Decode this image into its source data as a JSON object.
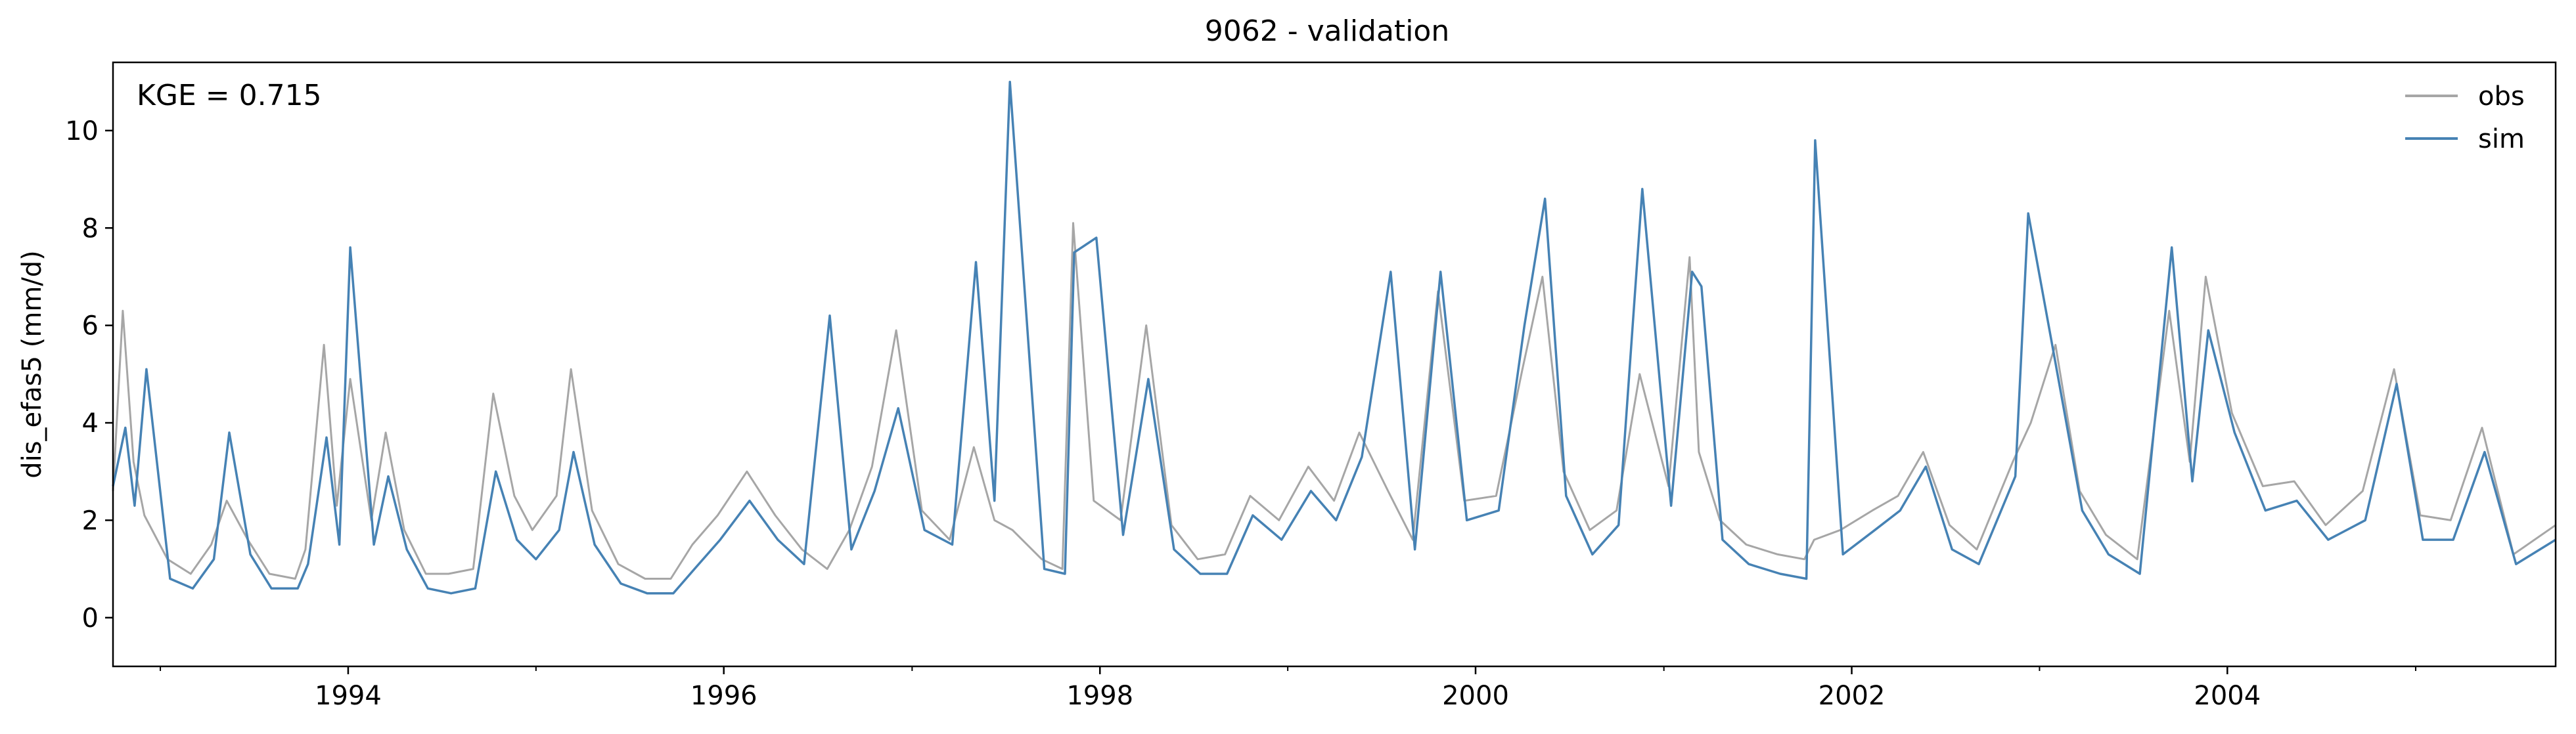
{
  "chart_data": {
    "type": "line",
    "title": "9062 - validation",
    "xlabel": "",
    "ylabel": "dis_efas5 (mm/d)",
    "annotation": "KGE = 0.715",
    "x_range": [
      "1992-10-01",
      "2005-09-30"
    ],
    "ylim": [
      -1.0,
      11.4
    ],
    "y_ticks": [
      0,
      2,
      4,
      6,
      8,
      10
    ],
    "x_tick_labels": [
      "1994",
      "1996",
      "1998",
      "2000",
      "2002",
      "2004"
    ],
    "x_major_ticks": [
      "1994-01-01",
      "1996-01-01",
      "1998-01-01",
      "2000-01-01",
      "2002-01-01",
      "2004-01-01"
    ],
    "x_minor_ticks": [
      "1993-01-01",
      "1995-01-01",
      "1997-01-01",
      "1999-01-01",
      "2001-01-01",
      "2003-01-01",
      "2005-01-01"
    ],
    "grid": false,
    "legend_position": "top-right",
    "series": [
      {
        "name": "obs",
        "color": "#a6a6a6",
        "x": [
          "1992-10-01",
          "1992-10-20",
          "1992-11-10",
          "1992-12-01",
          "1993-01-15",
          "1993-03-01",
          "1993-04-10",
          "1993-05-10",
          "1993-06-20",
          "1993-08-01",
          "1993-09-20",
          "1993-10-10",
          "1993-11-15",
          "1993-12-10",
          "1994-01-05",
          "1994-02-15",
          "1994-03-15",
          "1994-04-20",
          "1994-06-01",
          "1994-07-15",
          "1994-09-01",
          "1994-10-10",
          "1994-11-20",
          "1994-12-25",
          "1995-02-10",
          "1995-03-10",
          "1995-04-20",
          "1995-06-10",
          "1995-08-01",
          "1995-09-20",
          "1995-11-01",
          "1995-12-20",
          "1996-02-15",
          "1996-04-10",
          "1996-06-01",
          "1996-07-20",
          "1996-09-01",
          "1996-10-15",
          "1996-12-01",
          "1997-01-20",
          "1997-03-15",
          "1997-05-01",
          "1997-06-10",
          "1997-07-15",
          "1997-09-10",
          "1997-10-20",
          "1997-11-10",
          "1997-12-20",
          "1998-02-10",
          "1998-04-01",
          "1998-05-20",
          "1998-07-10",
          "1998-09-01",
          "1998-10-20",
          "1998-12-15",
          "1999-02-10",
          "1999-04-01",
          "1999-05-20",
          "1999-07-15",
          "1999-09-01",
          "1999-10-20",
          "1999-12-10",
          "2000-02-10",
          "2000-04-01",
          "2000-05-10",
          "2000-06-20",
          "2000-08-10",
          "2000-10-01",
          "2000-11-15",
          "2001-01-10",
          "2001-02-20",
          "2001-03-10",
          "2001-04-20",
          "2001-06-10",
          "2001-08-10",
          "2001-10-01",
          "2001-10-20",
          "2001-12-10",
          "2002-02-10",
          "2002-04-01",
          "2002-05-20",
          "2002-07-10",
          "2002-09-01",
          "2002-11-10",
          "2002-12-15",
          "2003-02-01",
          "2003-03-20",
          "2003-05-10",
          "2003-07-10",
          "2003-09-10",
          "2003-10-20",
          "2003-11-20",
          "2004-01-10",
          "2004-03-10",
          "2004-05-10",
          "2004-07-10",
          "2004-09-20",
          "2004-11-20",
          "2005-01-10",
          "2005-03-10",
          "2005-05-10",
          "2005-07-10",
          "2005-09-30"
        ],
        "values": [
          2.6,
          6.3,
          3.2,
          2.1,
          1.2,
          0.9,
          1.5,
          2.4,
          1.6,
          0.9,
          0.8,
          1.4,
          5.6,
          2.3,
          4.9,
          2.0,
          3.8,
          1.8,
          0.9,
          0.9,
          1.0,
          4.6,
          2.5,
          1.8,
          2.5,
          5.1,
          2.2,
          1.1,
          0.8,
          0.8,
          1.5,
          2.1,
          3.0,
          2.1,
          1.4,
          1.0,
          1.8,
          3.1,
          5.9,
          2.2,
          1.6,
          3.5,
          2.0,
          1.8,
          1.2,
          1.0,
          8.1,
          2.4,
          2.0,
          6.0,
          1.9,
          1.2,
          1.3,
          2.5,
          2.0,
          3.1,
          2.4,
          3.8,
          2.6,
          1.6,
          6.7,
          2.4,
          2.5,
          5.1,
          7.0,
          3.0,
          1.8,
          2.2,
          5.0,
          2.7,
          7.4,
          3.4,
          2.0,
          1.5,
          1.3,
          1.2,
          1.6,
          1.8,
          2.2,
          2.5,
          3.4,
          1.9,
          1.4,
          3.2,
          4.0,
          5.6,
          2.6,
          1.7,
          1.2,
          6.3,
          3.2,
          7.0,
          4.2,
          2.7,
          2.8,
          1.9,
          2.6,
          5.1,
          2.1,
          2.0,
          3.9,
          1.3,
          1.9
        ]
      },
      {
        "name": "sim",
        "color": "#4682b4",
        "x": [
          "1992-10-01",
          "1992-10-25",
          "1992-11-12",
          "1992-12-05",
          "1993-01-20",
          "1993-03-05",
          "1993-04-15",
          "1993-05-15",
          "1993-06-25",
          "1993-08-05",
          "1993-09-25",
          "1993-10-15",
          "1993-11-20",
          "1993-12-15",
          "1994-01-05",
          "1994-02-20",
          "1994-03-20",
          "1994-04-25",
          "1994-06-05",
          "1994-07-20",
          "1994-09-05",
          "1994-10-15",
          "1994-11-25",
          "1995-01-01",
          "1995-02-15",
          "1995-03-15",
          "1995-04-25",
          "1995-06-15",
          "1995-08-05",
          "1995-09-25",
          "1995-11-05",
          "1995-12-25",
          "1996-02-20",
          "1996-04-15",
          "1996-06-05",
          "1996-07-25",
          "1996-09-05",
          "1996-10-20",
          "1996-12-05",
          "1997-01-25",
          "1997-03-20",
          "1997-05-05",
          "1997-06-10",
          "1997-07-10",
          "1997-09-15",
          "1997-10-25",
          "1997-11-12",
          "1997-12-25",
          "1998-02-15",
          "1998-04-05",
          "1998-05-25",
          "1998-07-15",
          "1998-09-05",
          "1998-10-25",
          "1998-12-20",
          "1999-02-15",
          "1999-04-05",
          "1999-05-25",
          "1999-07-20",
          "1999-09-05",
          "1999-10-25",
          "1999-12-15",
          "2000-02-15",
          "2000-04-05",
          "2000-05-15",
          "2000-06-25",
          "2000-08-15",
          "2000-10-05",
          "2000-11-20",
          "2001-01-15",
          "2001-02-25",
          "2001-03-15",
          "2001-04-25",
          "2001-06-15",
          "2001-08-15",
          "2001-10-05",
          "2001-10-22",
          "2001-12-15",
          "2002-02-15",
          "2002-04-05",
          "2002-05-25",
          "2002-07-15",
          "2002-09-05",
          "2002-11-15",
          "2002-12-10",
          "2003-02-05",
          "2003-03-25",
          "2003-05-15",
          "2003-07-15",
          "2003-09-15",
          "2003-10-25",
          "2003-11-25",
          "2004-01-15",
          "2004-03-15",
          "2004-05-15",
          "2004-07-15",
          "2004-09-25",
          "2004-11-25",
          "2005-01-15",
          "2005-03-15",
          "2005-05-15",
          "2005-07-15",
          "2005-09-30"
        ],
        "values": [
          2.7,
          3.9,
          2.3,
          5.1,
          0.8,
          0.6,
          1.2,
          3.8,
          1.3,
          0.6,
          0.6,
          1.1,
          3.7,
          1.5,
          7.6,
          1.5,
          2.9,
          1.4,
          0.6,
          0.5,
          0.6,
          3.0,
          1.6,
          1.2,
          1.8,
          3.4,
          1.5,
          0.7,
          0.5,
          0.5,
          1.0,
          1.6,
          2.4,
          1.6,
          1.1,
          6.2,
          1.4,
          2.6,
          4.3,
          1.8,
          1.5,
          7.3,
          2.4,
          11.0,
          1.0,
          0.9,
          7.5,
          7.8,
          1.7,
          4.9,
          1.4,
          0.9,
          0.9,
          2.1,
          1.6,
          2.6,
          2.0,
          3.3,
          7.1,
          1.4,
          7.1,
          2.0,
          2.2,
          6.0,
          8.6,
          2.5,
          1.3,
          1.9,
          8.8,
          2.3,
          7.1,
          6.8,
          1.6,
          1.1,
          0.9,
          0.8,
          9.8,
          1.3,
          1.8,
          2.2,
          3.1,
          1.4,
          1.1,
          2.9,
          8.3,
          5.0,
          2.2,
          1.3,
          0.9,
          7.6,
          2.8,
          5.9,
          3.8,
          2.2,
          2.4,
          1.6,
          2.0,
          4.8,
          1.6,
          1.6,
          3.4,
          1.1,
          1.6
        ]
      }
    ]
  }
}
